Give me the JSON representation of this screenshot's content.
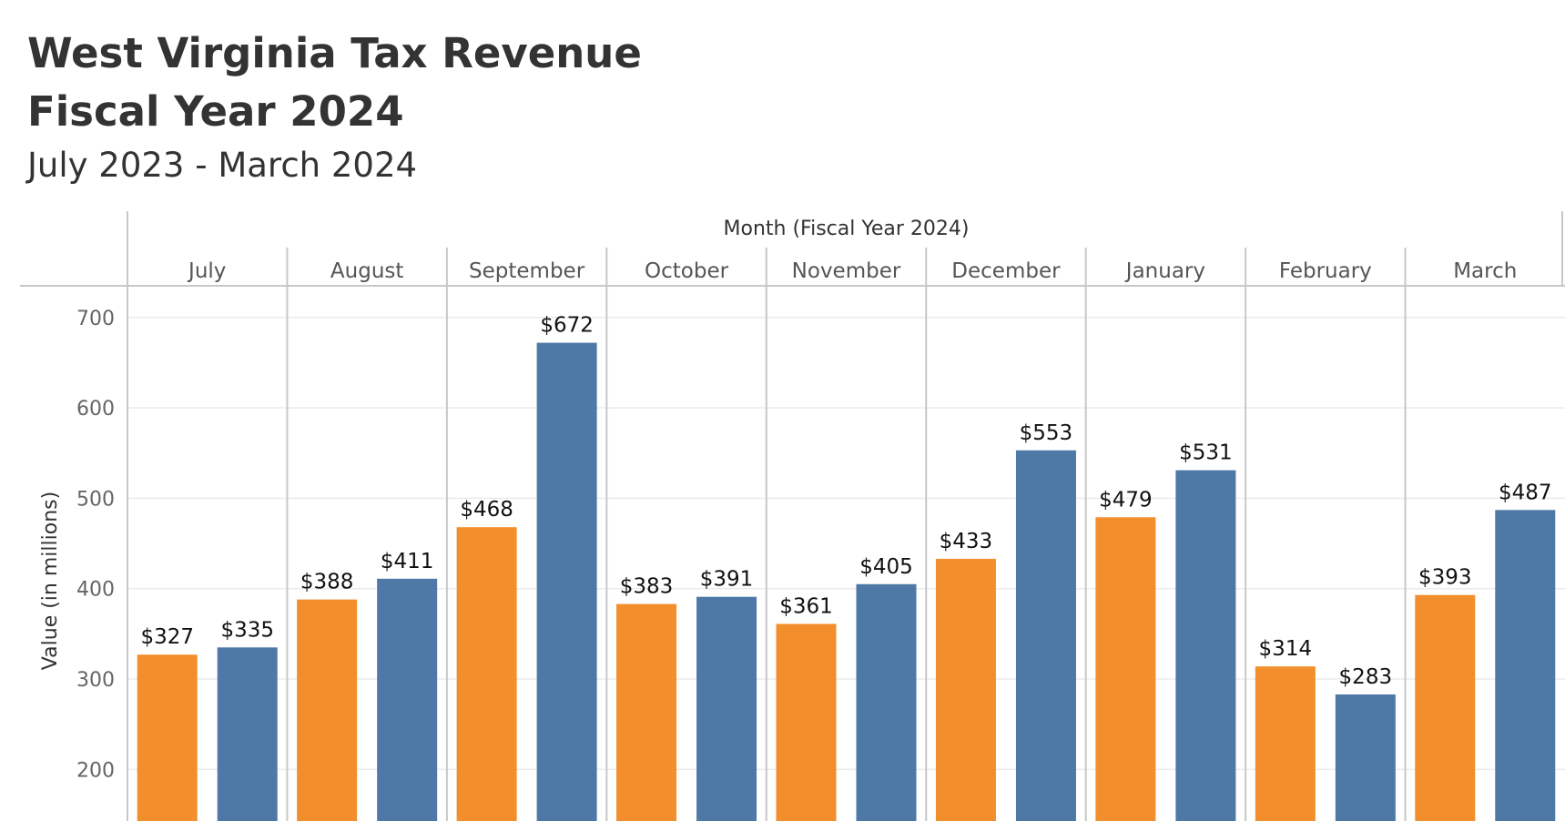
{
  "title_line1": "West Virginia Tax Revenue",
  "title_line2": "Fiscal Year 2024",
  "subtitle": "July 2023 - March 2024",
  "chart_data": {
    "type": "bar",
    "title": "West Virginia Tax Revenue Fiscal Year 2024",
    "subtitle": "July 2023 - March 2024",
    "xlabel": "Month (Fiscal Year 2024)",
    "ylabel": "Value (in millions)",
    "categories": [
      "July",
      "August",
      "September",
      "October",
      "November",
      "December",
      "January",
      "February",
      "March"
    ],
    "series": [
      {
        "color": "#F28E2B",
        "values": [
          327,
          388,
          468,
          383,
          361,
          433,
          479,
          314,
          393
        ]
      },
      {
        "color": "#4E79A7",
        "values": [
          335,
          411,
          672,
          391,
          405,
          553,
          531,
          283,
          487
        ]
      }
    ],
    "value_labels": {
      "0": [
        "$327",
        "$388",
        "$468",
        "$383",
        "$361",
        "$433",
        "$479",
        "$314",
        "$393"
      ],
      "1": [
        "$335",
        "$411",
        "$672",
        "$391",
        "$405",
        "$553",
        "$531",
        "$283",
        "$487"
      ]
    },
    "yticks": [
      200,
      300,
      400,
      500,
      600,
      700
    ],
    "ylim": [
      143,
      735
    ],
    "grid": true,
    "legend": "none"
  }
}
